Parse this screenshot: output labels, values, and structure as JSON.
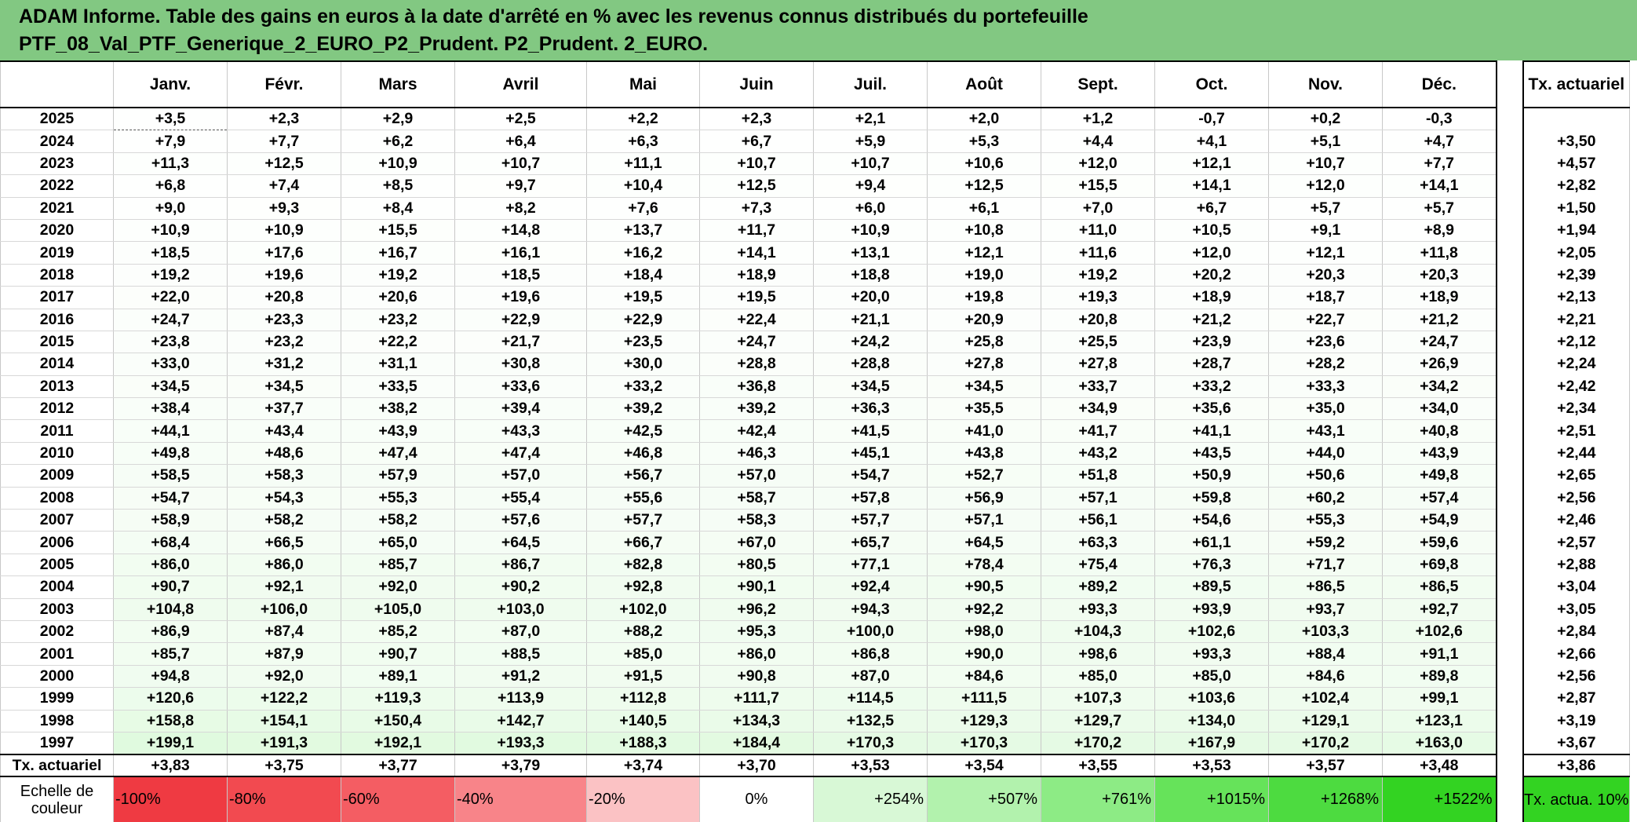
{
  "title": {
    "line1": "ADAM Informe. Table des gains en euros à la date d'arrêté en % avec les revenus connus distribués du portefeuille",
    "line2": "PTF_08_Val_PTF_Generique_2_EURO_P2_Prudent. P2_Prudent. 2_EURO."
  },
  "months": [
    "Janv.",
    "Févr.",
    "Mars",
    "Avril",
    "Mai",
    "Juin",
    "Juil.",
    "Août",
    "Sept.",
    "Oct.",
    "Nov.",
    "Déc."
  ],
  "tx_label": "Tx. actuariel",
  "rows": [
    {
      "year": "2025",
      "v": [
        "+3,5",
        "+2,3",
        "+2,9",
        "+2,5",
        "+2,2",
        "+2,3",
        "+2,1",
        "+2,0",
        "+1,2",
        "-0,7",
        "+0,2",
        "-0,3"
      ],
      "tx": ""
    },
    {
      "year": "2024",
      "v": [
        "+7,9",
        "+7,7",
        "+6,2",
        "+6,4",
        "+6,3",
        "+6,7",
        "+5,9",
        "+5,3",
        "+4,4",
        "+4,1",
        "+5,1",
        "+4,7"
      ],
      "tx": "+3,50"
    },
    {
      "year": "2023",
      "v": [
        "+11,3",
        "+12,5",
        "+10,9",
        "+10,7",
        "+11,1",
        "+10,7",
        "+10,7",
        "+10,6",
        "+12,0",
        "+12,1",
        "+10,7",
        "+7,7"
      ],
      "tx": "+4,57"
    },
    {
      "year": "2022",
      "v": [
        "+6,8",
        "+7,4",
        "+8,5",
        "+9,7",
        "+10,4",
        "+12,5",
        "+9,4",
        "+12,5",
        "+15,5",
        "+14,1",
        "+12,0",
        "+14,1"
      ],
      "tx": "+2,82"
    },
    {
      "year": "2021",
      "v": [
        "+9,0",
        "+9,3",
        "+8,4",
        "+8,2",
        "+7,6",
        "+7,3",
        "+6,0",
        "+6,1",
        "+7,0",
        "+6,7",
        "+5,7",
        "+5,7"
      ],
      "tx": "+1,50"
    },
    {
      "year": "2020",
      "v": [
        "+10,9",
        "+10,9",
        "+15,5",
        "+14,8",
        "+13,7",
        "+11,7",
        "+10,9",
        "+10,8",
        "+11,0",
        "+10,5",
        "+9,1",
        "+8,9"
      ],
      "tx": "+1,94"
    },
    {
      "year": "2019",
      "v": [
        "+18,5",
        "+17,6",
        "+16,7",
        "+16,1",
        "+16,2",
        "+14,1",
        "+13,1",
        "+12,1",
        "+11,6",
        "+12,0",
        "+12,1",
        "+11,8"
      ],
      "tx": "+2,05"
    },
    {
      "year": "2018",
      "v": [
        "+19,2",
        "+19,6",
        "+19,2",
        "+18,5",
        "+18,4",
        "+18,9",
        "+18,8",
        "+19,0",
        "+19,2",
        "+20,2",
        "+20,3",
        "+20,3"
      ],
      "tx": "+2,39"
    },
    {
      "year": "2017",
      "v": [
        "+22,0",
        "+20,8",
        "+20,6",
        "+19,6",
        "+19,5",
        "+19,5",
        "+20,0",
        "+19,8",
        "+19,3",
        "+18,9",
        "+18,7",
        "+18,9"
      ],
      "tx": "+2,13"
    },
    {
      "year": "2016",
      "v": [
        "+24,7",
        "+23,3",
        "+23,2",
        "+22,9",
        "+22,9",
        "+22,4",
        "+21,1",
        "+20,9",
        "+20,8",
        "+21,2",
        "+22,7",
        "+21,2"
      ],
      "tx": "+2,21"
    },
    {
      "year": "2015",
      "v": [
        "+23,8",
        "+23,2",
        "+22,2",
        "+21,7",
        "+23,5",
        "+24,7",
        "+24,2",
        "+25,8",
        "+25,5",
        "+23,9",
        "+23,6",
        "+24,7"
      ],
      "tx": "+2,12"
    },
    {
      "year": "2014",
      "v": [
        "+33,0",
        "+31,2",
        "+31,1",
        "+30,8",
        "+30,0",
        "+28,8",
        "+28,8",
        "+27,8",
        "+27,8",
        "+28,7",
        "+28,2",
        "+26,9"
      ],
      "tx": "+2,24"
    },
    {
      "year": "2013",
      "v": [
        "+34,5",
        "+34,5",
        "+33,5",
        "+33,6",
        "+33,2",
        "+36,8",
        "+34,5",
        "+34,5",
        "+33,7",
        "+33,2",
        "+33,3",
        "+34,2"
      ],
      "tx": "+2,42"
    },
    {
      "year": "2012",
      "v": [
        "+38,4",
        "+37,7",
        "+38,2",
        "+39,4",
        "+39,2",
        "+39,2",
        "+36,3",
        "+35,5",
        "+34,9",
        "+35,6",
        "+35,0",
        "+34,0"
      ],
      "tx": "+2,34"
    },
    {
      "year": "2011",
      "v": [
        "+44,1",
        "+43,4",
        "+43,9",
        "+43,3",
        "+42,5",
        "+42,4",
        "+41,5",
        "+41,0",
        "+41,7",
        "+41,1",
        "+43,1",
        "+40,8"
      ],
      "tx": "+2,51"
    },
    {
      "year": "2010",
      "v": [
        "+49,8",
        "+48,6",
        "+47,4",
        "+47,4",
        "+46,8",
        "+46,3",
        "+45,1",
        "+43,8",
        "+43,2",
        "+43,5",
        "+44,0",
        "+43,9"
      ],
      "tx": "+2,44"
    },
    {
      "year": "2009",
      "v": [
        "+58,5",
        "+58,3",
        "+57,9",
        "+57,0",
        "+56,7",
        "+57,0",
        "+54,7",
        "+52,7",
        "+51,8",
        "+50,9",
        "+50,6",
        "+49,8"
      ],
      "tx": "+2,65"
    },
    {
      "year": "2008",
      "v": [
        "+54,7",
        "+54,3",
        "+55,3",
        "+55,4",
        "+55,6",
        "+58,7",
        "+57,8",
        "+56,9",
        "+57,1",
        "+59,8",
        "+60,2",
        "+57,4"
      ],
      "tx": "+2,56"
    },
    {
      "year": "2007",
      "v": [
        "+58,9",
        "+58,2",
        "+58,2",
        "+57,6",
        "+57,7",
        "+58,3",
        "+57,7",
        "+57,1",
        "+56,1",
        "+54,6",
        "+55,3",
        "+54,9"
      ],
      "tx": "+2,46"
    },
    {
      "year": "2006",
      "v": [
        "+68,4",
        "+66,5",
        "+65,0",
        "+64,5",
        "+66,7",
        "+67,0",
        "+65,7",
        "+64,5",
        "+63,3",
        "+61,1",
        "+59,2",
        "+59,6"
      ],
      "tx": "+2,57"
    },
    {
      "year": "2005",
      "v": [
        "+86,0",
        "+86,0",
        "+85,7",
        "+86,7",
        "+82,8",
        "+80,5",
        "+77,1",
        "+78,4",
        "+75,4",
        "+76,3",
        "+71,7",
        "+69,8"
      ],
      "tx": "+2,88"
    },
    {
      "year": "2004",
      "v": [
        "+90,7",
        "+92,1",
        "+92,0",
        "+90,2",
        "+92,8",
        "+90,1",
        "+92,4",
        "+90,5",
        "+89,2",
        "+89,5",
        "+86,5",
        "+86,5"
      ],
      "tx": "+3,04"
    },
    {
      "year": "2003",
      "v": [
        "+104,8",
        "+106,0",
        "+105,0",
        "+103,0",
        "+102,0",
        "+96,2",
        "+94,3",
        "+92,2",
        "+93,3",
        "+93,9",
        "+93,7",
        "+92,7"
      ],
      "tx": "+3,05"
    },
    {
      "year": "2002",
      "v": [
        "+86,9",
        "+87,4",
        "+85,2",
        "+87,0",
        "+88,2",
        "+95,3",
        "+100,0",
        "+98,0",
        "+104,3",
        "+102,6",
        "+103,3",
        "+102,6"
      ],
      "tx": "+2,84"
    },
    {
      "year": "2001",
      "v": [
        "+85,7",
        "+87,9",
        "+90,7",
        "+88,5",
        "+85,0",
        "+86,0",
        "+86,8",
        "+90,0",
        "+98,6",
        "+93,3",
        "+88,4",
        "+91,1"
      ],
      "tx": "+2,66"
    },
    {
      "year": "2000",
      "v": [
        "+94,8",
        "+92,0",
        "+89,1",
        "+91,2",
        "+91,5",
        "+90,8",
        "+87,0",
        "+84,6",
        "+85,0",
        "+85,0",
        "+84,6",
        "+89,8"
      ],
      "tx": "+2,56"
    },
    {
      "year": "1999",
      "v": [
        "+120,6",
        "+122,2",
        "+119,3",
        "+113,9",
        "+112,8",
        "+111,7",
        "+114,5",
        "+111,5",
        "+107,3",
        "+103,6",
        "+102,4",
        "+99,1"
      ],
      "tx": "+2,87"
    },
    {
      "year": "1998",
      "v": [
        "+158,8",
        "+154,1",
        "+150,4",
        "+142,7",
        "+140,5",
        "+134,3",
        "+132,5",
        "+129,3",
        "+129,7",
        "+134,0",
        "+129,1",
        "+123,1"
      ],
      "tx": "+3,19"
    },
    {
      "year": "1997",
      "v": [
        "+199,1",
        "+191,3",
        "+192,1",
        "+193,3",
        "+188,3",
        "+184,4",
        "+170,3",
        "+170,3",
        "+170,2",
        "+167,9",
        "+170,2",
        "+163,0"
      ],
      "tx": "+3,67"
    }
  ],
  "actuariel_row": {
    "label": "Tx. actuariel",
    "v": [
      "+3,83",
      "+3,75",
      "+3,77",
      "+3,79",
      "+3,74",
      "+3,70",
      "+3,53",
      "+3,54",
      "+3,55",
      "+3,53",
      "+3,57",
      "+3,48"
    ],
    "tx": "+3,86"
  },
  "scale": {
    "label": "Echelle de couleur",
    "items": [
      {
        "text": "-100%",
        "color": "#ef3a42"
      },
      {
        "text": "-80%",
        "color": "#f24a50"
      },
      {
        "text": "-60%",
        "color": "#f45d63"
      },
      {
        "text": "-40%",
        "color": "#f88489"
      },
      {
        "text": "-20%",
        "color": "#fbc2c4"
      },
      {
        "text": "0%",
        "color": "#ffffff"
      },
      {
        "text": "+254%",
        "color": "#d8f8d6"
      },
      {
        "text": "+507%",
        "color": "#b2f2ad"
      },
      {
        "text": "+761%",
        "color": "#8deb85"
      },
      {
        "text": "+1015%",
        "color": "#66e35a"
      },
      {
        "text": "+1268%",
        "color": "#4ddb40"
      },
      {
        "text": "+1522%",
        "color": "#33d322"
      }
    ],
    "legend_tx": "Tx. actua. 10%",
    "legend_color": "#33d322"
  }
}
